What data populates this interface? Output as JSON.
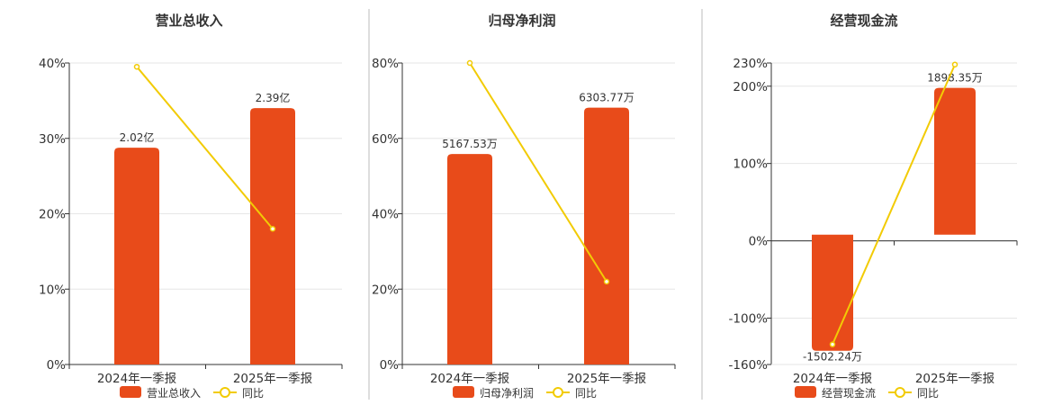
{
  "colors": {
    "bar": "#E84B1A",
    "line": "#F2CB05",
    "grid": "#E6E6E6",
    "axis": "#333333",
    "divider": "#BDBDBD"
  },
  "chart_data": [
    {
      "type": "bar+line",
      "title": "营业总收入",
      "categories": [
        "2024年一季报",
        "2025年一季报"
      ],
      "bar_values": [
        2.02,
        2.39
      ],
      "bar_labels": [
        "2.02亿",
        "2.39亿"
      ],
      "bar_unit": "亿",
      "line_values": [
        39.5,
        18.0
      ],
      "yticks": [
        "0%",
        "10%",
        "20%",
        "30%",
        "40%"
      ],
      "ylim": [
        0,
        40
      ],
      "bar_axis_max": 2.81,
      "legend": {
        "bar": "营业总收入",
        "line": "同比"
      },
      "grid": true,
      "legend_position": "bottom-center"
    },
    {
      "type": "bar+line",
      "title": "归母净利润",
      "categories": [
        "2024年一季报",
        "2025年一季报"
      ],
      "bar_values": [
        5167.53,
        6303.77
      ],
      "bar_labels": [
        "5167.53万",
        "6303.77万"
      ],
      "bar_unit": "万",
      "line_values": [
        80.0,
        22.0
      ],
      "yticks": [
        "0%",
        "20%",
        "40%",
        "60%",
        "80%"
      ],
      "ylim": [
        0,
        80
      ],
      "bar_axis_max": 7400,
      "legend": {
        "bar": "归母净利润",
        "line": "同比"
      },
      "grid": true,
      "legend_position": "bottom-center"
    },
    {
      "type": "bar+line",
      "title": "经营现金流",
      "categories": [
        "2024年一季报",
        "2025年一季报"
      ],
      "bar_values": [
        -1502.24,
        1898.35
      ],
      "bar_labels": [
        "-1502.24万",
        "1898.35万"
      ],
      "bar_unit": "万",
      "line_values": [
        -134,
        228
      ],
      "yticks": [
        "-160%",
        "-100%",
        "0%",
        "100%",
        "200%",
        "230%"
      ],
      "ylim": [
        -160,
        230
      ],
      "bar_axis_range": [
        -1680,
        2220
      ],
      "legend": {
        "bar": "经营现金流",
        "line": "同比"
      },
      "grid": true,
      "legend_position": "bottom-center"
    }
  ]
}
